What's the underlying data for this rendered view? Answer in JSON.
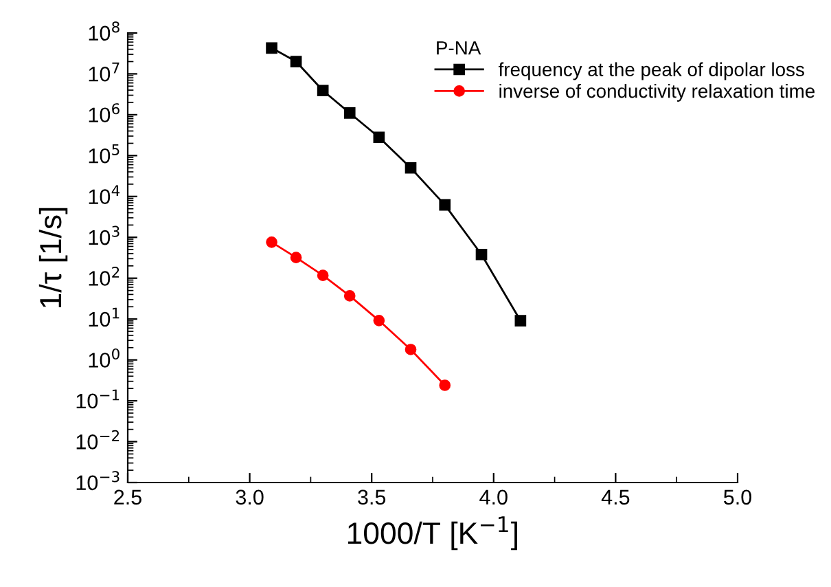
{
  "chart_data": {
    "type": "line",
    "xlabel": "1000/T [K$^{−1}$]",
    "ylabel": "1/τ [1/s]",
    "legend_title": "P-NA",
    "legend": "top right",
    "log": "y",
    "grid": false,
    "xlim": [
      2.5,
      5.0
    ],
    "xticks": [
      2.5,
      {
        "value": 3,
        "label": "3.0"
      },
      3.5,
      {
        "value": 4,
        "label": "4.0"
      },
      4.5,
      {
        "value": 5,
        "label": "5.0"
      }
    ],
    "ylim": [
      0.001,
      100000000
    ],
    "yticks": [
      {
        "value": 0.001,
        "label": "10$^{−3}$"
      },
      {
        "value": 0.01,
        "label": "10$^{−2}$"
      },
      {
        "value": 0.1,
        "label": "10$^{−1}$"
      },
      {
        "value": 1,
        "label": "10$^{0}$"
      },
      {
        "value": 10,
        "label": "10$^{1}$"
      },
      {
        "value": 100,
        "label": "10$^{2}$"
      },
      {
        "value": 1000,
        "label": "10$^{3}$"
      },
      {
        "value": 10000,
        "label": "10$^{4}$"
      },
      {
        "value": 100000,
        "label": "10$^{5}$"
      },
      {
        "value": 1000000,
        "label": "10$^{6}$"
      },
      {
        "value": 10000000,
        "label": "10$^{7}$"
      },
      {
        "value": 100000000,
        "label": "10$^{8}$"
      }
    ],
    "series": [
      {
        "name": "frequency at the peak of dipolar loss",
        "color": "#000000",
        "marker": "square",
        "x": [
          3.09,
          3.19,
          3.3,
          3.41,
          3.53,
          3.66,
          3.8,
          3.95,
          4.11
        ],
        "values": [
          43000000,
          20000000,
          3900000,
          1100000,
          280000,
          50000,
          6200,
          380,
          9.1
        ]
      },
      {
        "name": "inverse of conductivity relaxation time",
        "color": "#ff0000",
        "marker": "circle",
        "x": [
          3.09,
          3.19,
          3.3,
          3.41,
          3.53,
          3.66,
          3.8
        ],
        "values": [
          760,
          320,
          117,
          37,
          9.2,
          1.8,
          0.24
        ]
      }
    ]
  }
}
